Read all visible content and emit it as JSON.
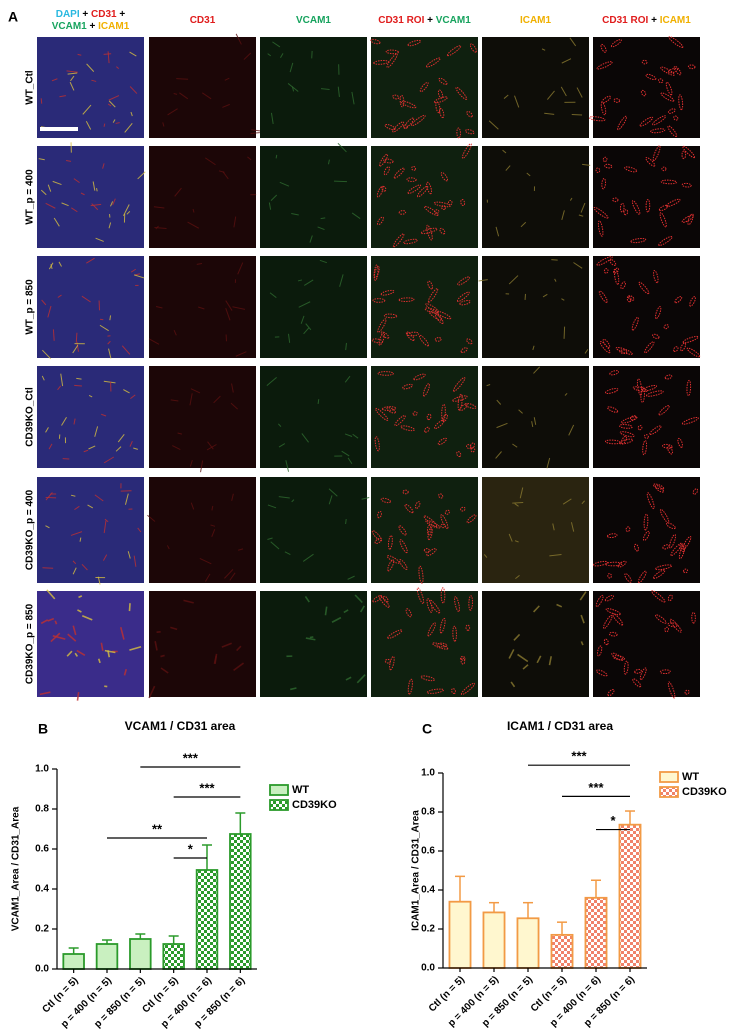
{
  "panel_a": {
    "label": "A",
    "column_headers": [
      [
        [
          {
            "text": "DAPI",
            "color": "#28b8e0"
          },
          {
            "text": " + ",
            "color": "#000000"
          },
          {
            "text": "CD31",
            "color": "#e01c1c"
          },
          {
            "text": " +",
            "color": "#000000"
          }
        ],
        [
          {
            "text": "VCAM1",
            "color": "#17a35e"
          },
          {
            "text": " + ",
            "color": "#000000"
          },
          {
            "text": "ICAM1",
            "color": "#f0b000"
          }
        ]
      ],
      [
        [
          {
            "text": "CD31",
            "color": "#e01c1c"
          }
        ]
      ],
      [
        [
          {
            "text": "VCAM1",
            "color": "#17a35e"
          }
        ]
      ],
      [
        [
          {
            "text": "CD31 ROI",
            "color": "#e01c1c"
          },
          {
            "text": " + ",
            "color": "#000000"
          },
          {
            "text": "VCAM1",
            "color": "#17a35e"
          }
        ]
      ],
      [
        [
          {
            "text": "ICAM1",
            "color": "#f0b000"
          }
        ]
      ],
      [
        [
          {
            "text": "CD31 ROI",
            "color": "#e01c1c"
          },
          {
            "text": " + ",
            "color": "#000000"
          },
          {
            "text": "ICAM1",
            "color": "#f0b000"
          }
        ]
      ]
    ],
    "row_labels": [
      "WT_Ctl",
      "WT_p = 400",
      "WT_p = 850",
      "CD39KO_Ctl",
      "CD39KO_p = 400",
      "CD39KO_p = 850"
    ]
  },
  "chart_data": [
    {
      "type": "bar",
      "panel_label": "B",
      "title": "VCAM1 / CD31 area",
      "y_label": "VCAM1_Area / CD31_Area",
      "categories": [
        "Ctl (n = 5)",
        "p = 400 (n = 5)",
        "p = 850 (n = 5)",
        "Ctl (n = 5)",
        "p = 400 (n = 6)",
        "p = 850 (n = 6)"
      ],
      "series": [
        {
          "name": "WT",
          "color": "#c9f0c0",
          "edge": "#2b9a2b",
          "hatch": "none",
          "values": [
            0.075,
            0.125,
            0.15,
            null,
            null,
            null
          ],
          "errors": [
            0.03,
            0.02,
            0.025,
            null,
            null,
            null
          ]
        },
        {
          "name": "CD39KO",
          "color": "#2b9a2b",
          "edge": "#2b9a2b",
          "hatch": "checker",
          "values": [
            null,
            null,
            null,
            0.125,
            0.495,
            0.675
          ],
          "errors": [
            null,
            null,
            null,
            0.04,
            0.125,
            0.105
          ]
        }
      ],
      "ylim": [
        0,
        1.0
      ],
      "yticks": [
        {
          "value": 0,
          "label": "0.0"
        },
        0.2,
        0.4,
        0.6,
        0.8,
        {
          "value": 1.0,
          "label": "1.0"
        }
      ],
      "annotations": [
        "***",
        "***",
        "**",
        "*"
      ],
      "legend": "right"
    },
    {
      "type": "bar",
      "panel_label": "C",
      "title": "ICAM1 / CD31 area",
      "y_label": "ICAM1_Area / CD31_Area",
      "categories": [
        "Ctl (n = 5)",
        "p = 400 (n = 5)",
        "p = 850 (n = 5)",
        "Ctl (n = 5)",
        "p = 400 (n = 6)",
        "p = 850 (n = 6)"
      ],
      "series": [
        {
          "name": "WT",
          "color": "#fff7cf",
          "edge": "#f29a45",
          "hatch": "none",
          "values": [
            0.34,
            0.285,
            0.255,
            null,
            null,
            null
          ],
          "errors": [
            0.13,
            0.05,
            0.08,
            null,
            null,
            null
          ]
        },
        {
          "name": "CD39KO",
          "color": "#f0826a",
          "edge": "#f29a45",
          "hatch": "checker",
          "values": [
            null,
            null,
            null,
            0.17,
            0.36,
            0.735
          ],
          "errors": [
            null,
            null,
            null,
            0.065,
            0.09,
            0.07
          ]
        }
      ],
      "ylim": [
        0,
        1.0
      ],
      "yticks": [
        {
          "value": 0,
          "label": "0.0"
        },
        0.2,
        0.4,
        0.6,
        0.8,
        {
          "value": 1.0,
          "label": "1.0"
        }
      ],
      "annotations": [
        "***",
        "***",
        "*"
      ],
      "legend": "right"
    }
  ]
}
